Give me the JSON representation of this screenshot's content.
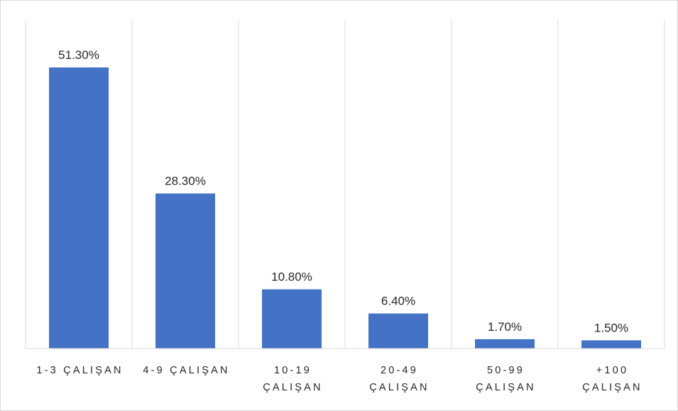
{
  "chart_data": {
    "type": "bar",
    "title": "",
    "xlabel": "",
    "ylabel": "",
    "categories": [
      [
        "1-3 ÇALIŞAN"
      ],
      [
        "4-9 ÇALIŞAN"
      ],
      [
        "10-19",
        "ÇALIŞAN"
      ],
      [
        "20-49",
        "ÇALIŞAN"
      ],
      [
        "50-99",
        "ÇALIŞAN"
      ],
      [
        "+100",
        "ÇALIŞAN"
      ]
    ],
    "values": [
      51.3,
      28.3,
      10.8,
      6.4,
      1.7,
      1.5
    ],
    "data_labels": [
      "51.30%",
      "28.30%",
      "10.80%",
      "6.40%",
      "1.70%",
      "1.50%"
    ],
    "unit": "%",
    "ylim": [
      0,
      51.3
    ],
    "grid": "vertical category separators",
    "legend": "none",
    "bar_color": "#4472c4"
  }
}
